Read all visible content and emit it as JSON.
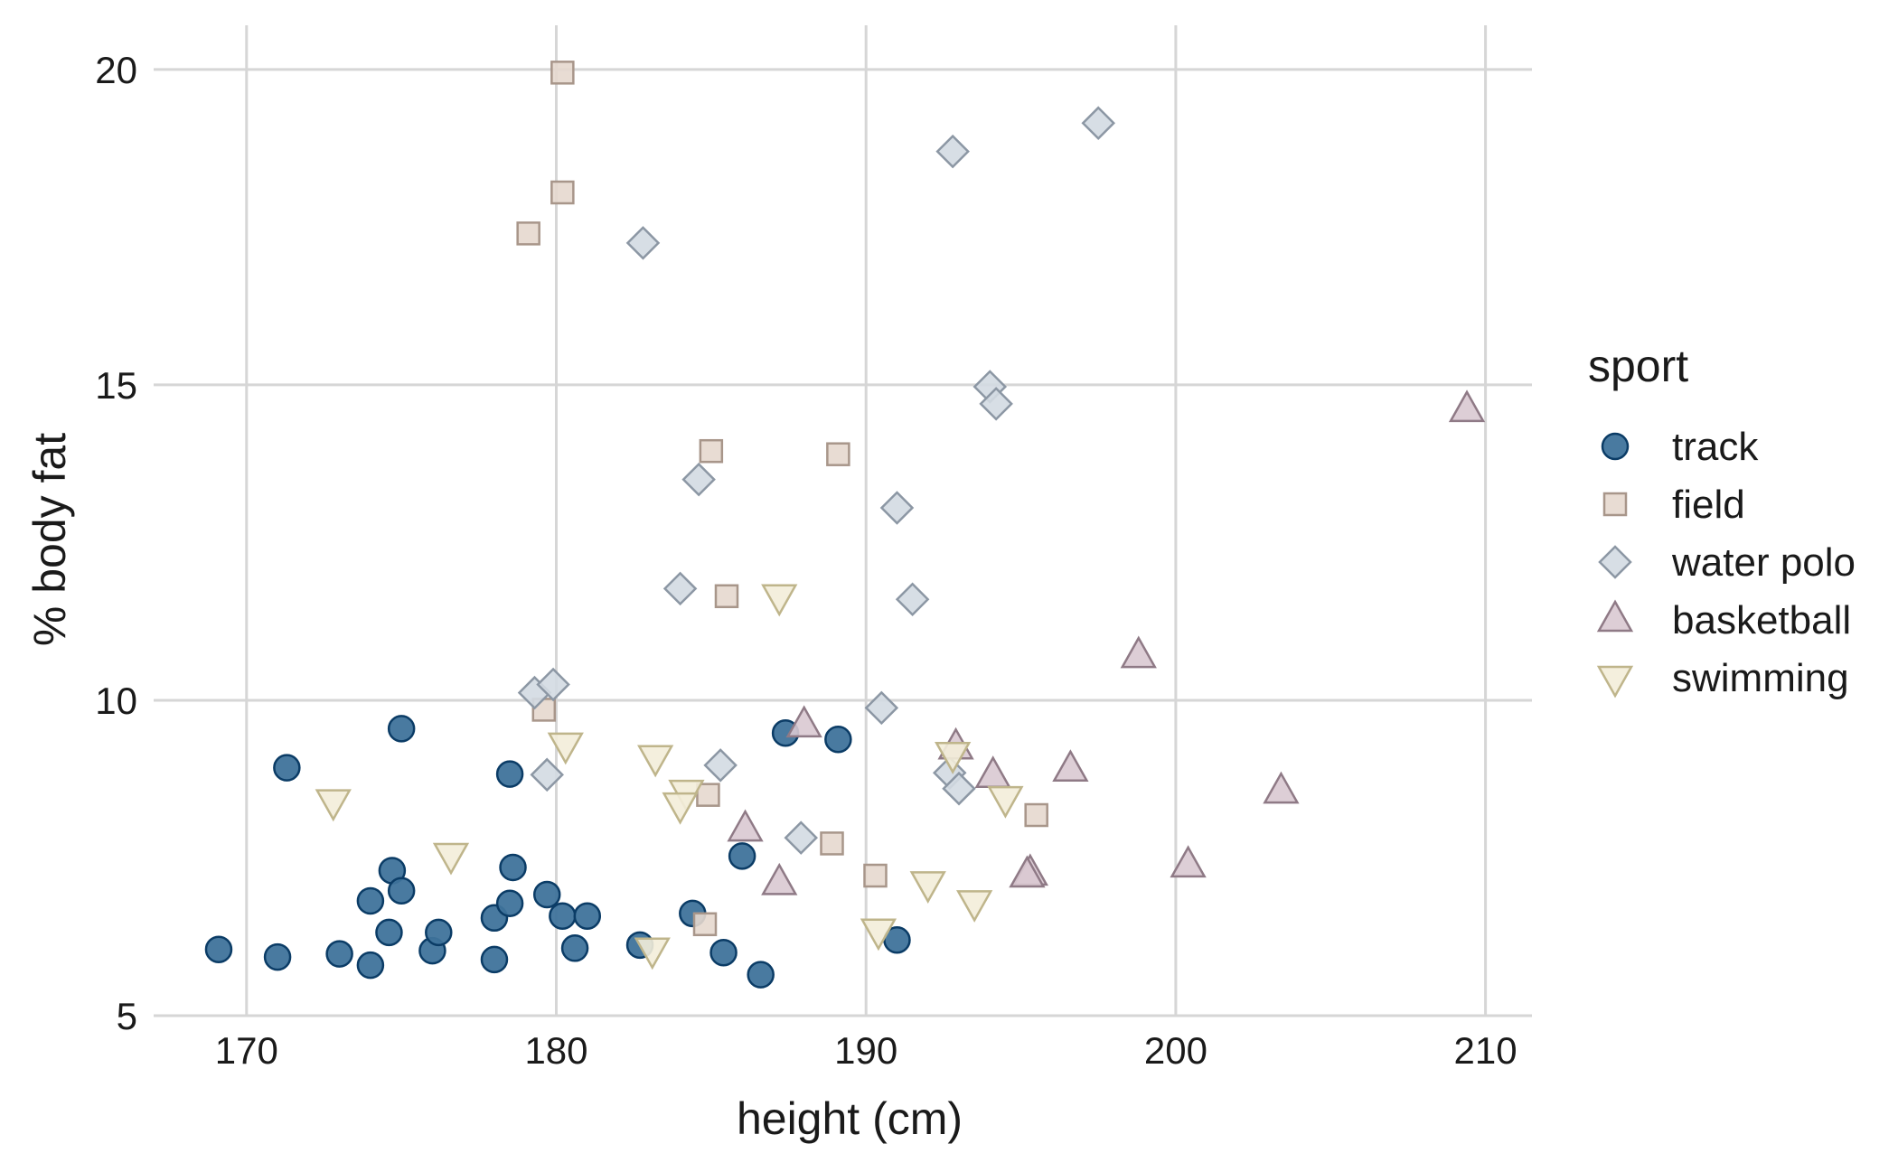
{
  "chart_data": {
    "type": "scatter",
    "xlabel": "height (cm)",
    "ylabel": "% body fat",
    "xlim": [
      167,
      211.5
    ],
    "ylim": [
      5,
      20.7
    ],
    "xticks": [
      170,
      180,
      190,
      200,
      210
    ],
    "yticks": [
      5,
      10,
      15,
      20
    ],
    "grid": true,
    "legend": {
      "title": "sport",
      "position": "right"
    },
    "series": [
      {
        "name": "track",
        "shape": "circle",
        "fill": "#3f739b",
        "stroke": "#0b3c66",
        "points": [
          [
            169.1,
            6.05
          ],
          [
            171.0,
            5.93
          ],
          [
            171.3,
            8.93
          ],
          [
            173.0,
            5.98
          ],
          [
            174.0,
            5.8
          ],
          [
            174.0,
            6.82
          ],
          [
            174.6,
            6.32
          ],
          [
            174.7,
            7.3
          ],
          [
            175.0,
            9.55
          ],
          [
            175.0,
            6.98
          ],
          [
            176.0,
            6.03
          ],
          [
            176.2,
            6.32
          ],
          [
            178.0,
            5.89
          ],
          [
            178.0,
            6.55
          ],
          [
            178.5,
            6.78
          ],
          [
            178.5,
            8.83
          ],
          [
            178.6,
            7.35
          ],
          [
            179.7,
            6.92
          ],
          [
            180.2,
            6.58
          ],
          [
            180.6,
            6.07
          ],
          [
            181.0,
            6.58
          ],
          [
            182.7,
            6.12
          ],
          [
            184.4,
            6.62
          ],
          [
            185.4,
            6.0
          ],
          [
            186.0,
            7.53
          ],
          [
            186.6,
            5.65
          ],
          [
            187.4,
            9.48
          ],
          [
            189.1,
            9.38
          ],
          [
            191.0,
            6.2
          ]
        ]
      },
      {
        "name": "field",
        "shape": "square",
        "fill": "#e6d8ce",
        "stroke": "#a8968a",
        "points": [
          [
            179.1,
            17.4
          ],
          [
            180.2,
            19.95
          ],
          [
            180.2,
            18.05
          ],
          [
            179.6,
            9.85
          ],
          [
            185.0,
            13.95
          ],
          [
            185.5,
            11.65
          ],
          [
            184.9,
            8.5
          ],
          [
            184.8,
            6.45
          ],
          [
            189.1,
            13.9
          ],
          [
            188.9,
            7.73
          ],
          [
            190.3,
            7.22
          ],
          [
            195.5,
            8.18
          ]
        ]
      },
      {
        "name": "water polo",
        "shape": "diamond",
        "fill": "#d3dae2",
        "stroke": "#8c97a4",
        "points": [
          [
            179.3,
            10.12
          ],
          [
            179.9,
            10.25
          ],
          [
            179.7,
            8.82
          ],
          [
            182.8,
            17.25
          ],
          [
            184.0,
            11.77
          ],
          [
            184.6,
            13.5
          ],
          [
            185.3,
            8.97
          ],
          [
            187.9,
            7.82
          ],
          [
            190.5,
            9.88
          ],
          [
            191.0,
            13.05
          ],
          [
            191.5,
            11.6
          ],
          [
            192.7,
            8.85
          ],
          [
            193.0,
            8.6
          ],
          [
            192.8,
            18.7
          ],
          [
            194.0,
            14.97
          ],
          [
            194.2,
            14.7
          ],
          [
            197.5,
            19.15
          ]
        ]
      },
      {
        "name": "basketball",
        "shape": "triangle-up",
        "fill": "#d9c9d1",
        "stroke": "#8f7a86",
        "points": [
          [
            186.1,
            7.95
          ],
          [
            187.2,
            7.1
          ],
          [
            188.0,
            9.6
          ],
          [
            192.9,
            9.25
          ],
          [
            194.1,
            8.8
          ],
          [
            195.3,
            7.25
          ],
          [
            195.2,
            7.22
          ],
          [
            196.6,
            8.9
          ],
          [
            198.8,
            10.7
          ],
          [
            200.4,
            7.38
          ],
          [
            203.4,
            8.55
          ],
          [
            209.4,
            14.6
          ]
        ]
      },
      {
        "name": "swimming",
        "shape": "triangle-down",
        "fill": "#f3edd9",
        "stroke": "#bfb58b",
        "points": [
          [
            172.8,
            8.4
          ],
          [
            176.6,
            7.55
          ],
          [
            180.3,
            9.3
          ],
          [
            183.2,
            9.1
          ],
          [
            184.2,
            8.55
          ],
          [
            184.0,
            8.35
          ],
          [
            183.1,
            6.05
          ],
          [
            187.2,
            11.65
          ],
          [
            190.4,
            6.35
          ],
          [
            192.0,
            7.1
          ],
          [
            192.8,
            9.15
          ],
          [
            193.5,
            6.8
          ],
          [
            194.5,
            8.45
          ]
        ]
      }
    ]
  }
}
